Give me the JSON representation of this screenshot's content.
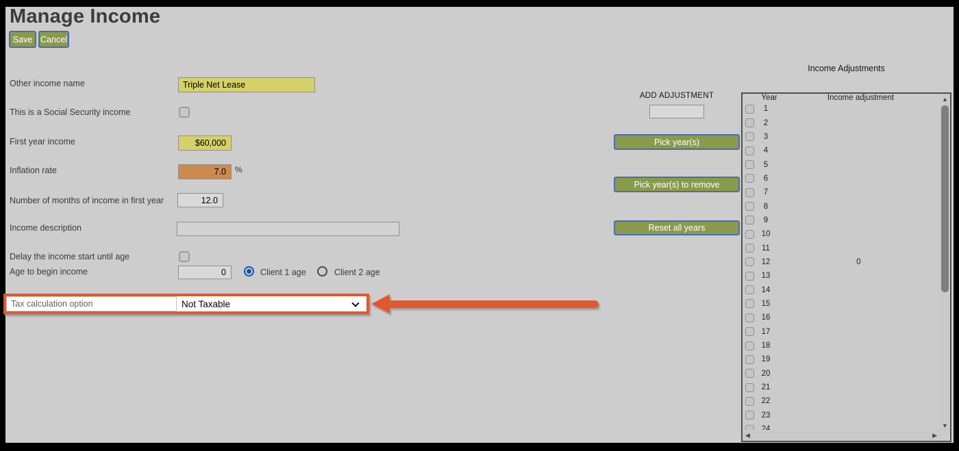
{
  "window": {
    "title": "Manage Income"
  },
  "toolbar": {
    "save": "Save",
    "cancel": "Cancel"
  },
  "form": {
    "other_income_name": {
      "label": "Other income name",
      "value": "Triple Net Lease"
    },
    "social_security": {
      "label": "This is a Social Security income",
      "checked": false
    },
    "first_year_income": {
      "label": "First year income",
      "value": "$60,000"
    },
    "inflation_rate": {
      "label": "Inflation rate",
      "value": "7.0",
      "suffix": "%"
    },
    "months_in_first_year": {
      "label": "Number of months of income in first year",
      "value": "12.0"
    },
    "income_description": {
      "label": "Income description",
      "value": ""
    },
    "delay_start": {
      "label": "Delay the income start until age",
      "checked": false
    },
    "age_to_begin": {
      "label": "Age to begin income",
      "value": "0"
    },
    "client_age_radios": [
      {
        "label": "Client 1 age",
        "selected": true
      },
      {
        "label": "Client 2 age",
        "selected": false
      }
    ],
    "tax_option": {
      "label": "Tax calculation option",
      "value": "Not Taxable"
    }
  },
  "adjustment_controls": {
    "heading": "ADD ADJUSTMENT",
    "input_value": "",
    "pick_years": "Pick year(s)",
    "pick_years_remove": "Pick year(s) to remove",
    "reset_all_years": "Reset all years"
  },
  "adjustments_panel": {
    "title": "Income Adjustments",
    "col_year": "Year",
    "col_adjustment": "Income adjustment",
    "rows": [
      {
        "year": "1",
        "adjustment": ""
      },
      {
        "year": "2",
        "adjustment": ""
      },
      {
        "year": "3",
        "adjustment": ""
      },
      {
        "year": "4",
        "adjustment": ""
      },
      {
        "year": "5",
        "adjustment": ""
      },
      {
        "year": "6",
        "adjustment": ""
      },
      {
        "year": "7",
        "adjustment": ""
      },
      {
        "year": "8",
        "adjustment": ""
      },
      {
        "year": "9",
        "adjustment": ""
      },
      {
        "year": "10",
        "adjustment": ""
      },
      {
        "year": "11",
        "adjustment": ""
      },
      {
        "year": "12",
        "adjustment": "0"
      },
      {
        "year": "13",
        "adjustment": ""
      },
      {
        "year": "14",
        "adjustment": ""
      },
      {
        "year": "15",
        "adjustment": ""
      },
      {
        "year": "16",
        "adjustment": ""
      },
      {
        "year": "17",
        "adjustment": ""
      },
      {
        "year": "18",
        "adjustment": ""
      },
      {
        "year": "19",
        "adjustment": ""
      },
      {
        "year": "20",
        "adjustment": ""
      },
      {
        "year": "21",
        "adjustment": ""
      },
      {
        "year": "22",
        "adjustment": ""
      },
      {
        "year": "23",
        "adjustment": ""
      },
      {
        "year": "24",
        "adjustment": ""
      }
    ]
  },
  "colors": {
    "background": "#cdcdcd",
    "frame": "#000000",
    "button_green": "#8a9a4c",
    "button_border_blue": "#4a6cb3",
    "input_yellow": "#d5d168",
    "input_orange": "#cd8a4e",
    "highlight_orange": "#e2582e",
    "radio_blue": "#1253b5"
  }
}
